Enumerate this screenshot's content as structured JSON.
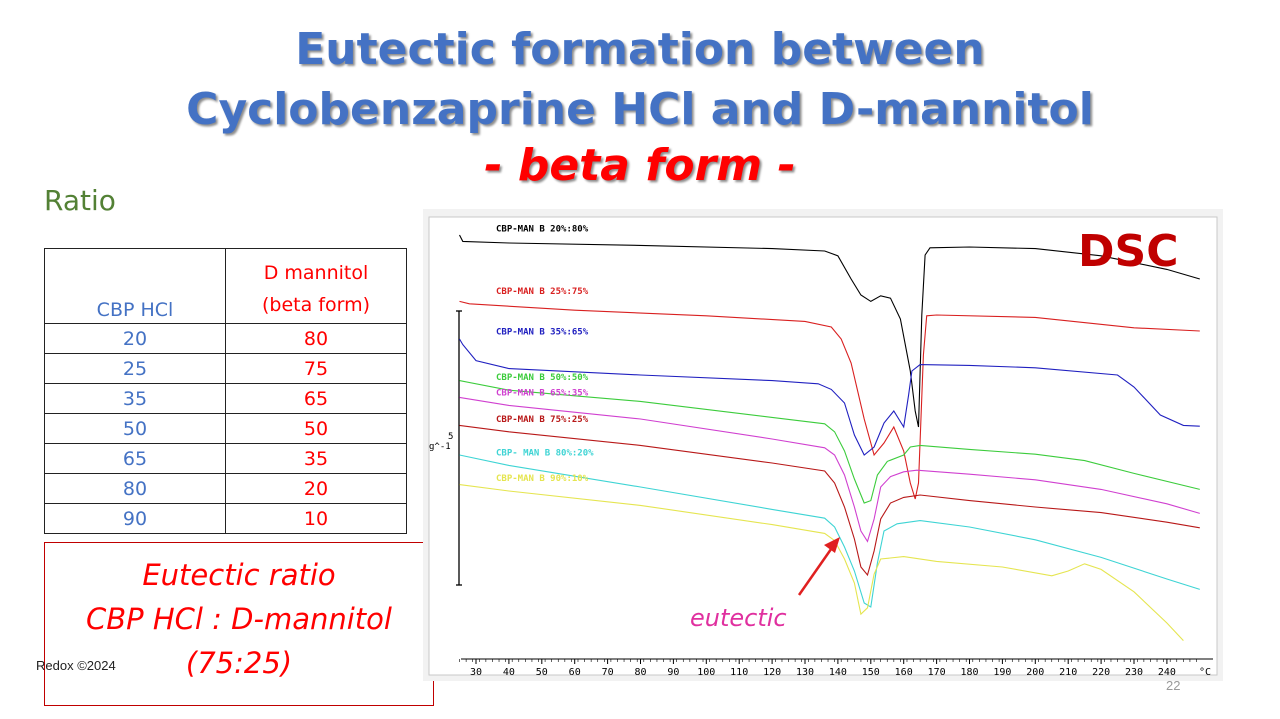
{
  "title": {
    "line1": "Eutectic formation between",
    "line2": "Cyclobenzaprine HCl and D-mannitol",
    "line3": "- beta form -"
  },
  "ratio_label": "Ratio",
  "ratio_table": {
    "header_col1": "CBP HCl",
    "header_col2_line1": "D mannitol",
    "header_col2_line2": "(beta form)",
    "rows": [
      [
        "20",
        "80"
      ],
      [
        "25",
        "75"
      ],
      [
        "35",
        "65"
      ],
      [
        "50",
        "50"
      ],
      [
        "65",
        "35"
      ],
      [
        "80",
        "20"
      ],
      [
        "90",
        "10"
      ]
    ]
  },
  "eutectic_box": {
    "line1": "Eutectic ratio",
    "line2": "CBP HCl : D-mannitol",
    "line3": "(75:25)"
  },
  "footer": {
    "copyright": "Redox ©2024",
    "page": "22"
  },
  "dsc_label": "DSC",
  "eutectic_annotation": "eutectic",
  "colors": {
    "title": "#4472c4",
    "subtitle": "#ff0000",
    "ratio_label": "#538135",
    "cbp_column": "#4472c4",
    "mannitol_column": "#ff0000",
    "dsc_label": "#c00000",
    "eutectic_annotation": "#e0309f"
  },
  "chart_data": {
    "type": "line",
    "title": "DSC",
    "xlabel": "°C",
    "ylabel": "",
    "y_scale_bar_label": "5\ng^-1",
    "xlim": [
      25,
      250
    ],
    "x_ticks": [
      30,
      40,
      50,
      60,
      70,
      80,
      90,
      100,
      110,
      120,
      130,
      140,
      150,
      160,
      170,
      180,
      190,
      200,
      210,
      220,
      230,
      240
    ],
    "x_unit_label": "°C",
    "grid": false,
    "legend": "inline labels left",
    "series": [
      {
        "name": "CBP-MAN B 20%:80%",
        "color": "#000000",
        "points": [
          [
            25,
            0
          ],
          [
            26,
            0.8
          ],
          [
            40,
            1.0
          ],
          [
            80,
            1.3
          ],
          [
            120,
            1.7
          ],
          [
            136,
            2.0
          ],
          [
            140,
            2.6
          ],
          [
            144,
            5.5
          ],
          [
            147,
            7.5
          ],
          [
            150,
            8.3
          ],
          [
            153,
            7.6
          ],
          [
            156,
            7.9
          ],
          [
            159,
            10.5
          ],
          [
            162,
            17
          ],
          [
            163.5,
            22
          ],
          [
            164.5,
            24
          ],
          [
            165.5,
            10
          ],
          [
            166.5,
            2.5
          ],
          [
            168,
            1.6
          ],
          [
            180,
            1.5
          ],
          [
            200,
            1.7
          ],
          [
            220,
            2.6
          ],
          [
            240,
            4.3
          ],
          [
            250,
            5.5
          ]
        ]
      },
      {
        "name": "CBP-MAN B 25%:75%",
        "color": "#d92020",
        "points": [
          [
            25,
            8.3
          ],
          [
            28,
            8.6
          ],
          [
            60,
            9.4
          ],
          [
            100,
            10.1
          ],
          [
            130,
            10.8
          ],
          [
            138,
            11.5
          ],
          [
            141,
            13
          ],
          [
            144,
            16
          ],
          [
            148,
            23
          ],
          [
            151,
            27.5
          ],
          [
            154,
            26
          ],
          [
            157,
            24
          ],
          [
            160,
            27
          ],
          [
            162,
            31
          ],
          [
            163.5,
            33
          ],
          [
            164.5,
            31
          ],
          [
            166,
            15
          ],
          [
            167,
            10.1
          ],
          [
            170,
            10.0
          ],
          [
            200,
            10.3
          ],
          [
            230,
            11.6
          ],
          [
            250,
            12.0
          ]
        ]
      },
      {
        "name": "CBP-MAN B 35%:65%",
        "color": "#2020c0",
        "points": [
          [
            25,
            13.0
          ],
          [
            26,
            13.7
          ],
          [
            30,
            15.7
          ],
          [
            40,
            16.7
          ],
          [
            80,
            17.5
          ],
          [
            120,
            18.2
          ],
          [
            134,
            18.6
          ],
          [
            138,
            19.3
          ],
          [
            142,
            21
          ],
          [
            145,
            25
          ],
          [
            148,
            27.5
          ],
          [
            151,
            26.5
          ],
          [
            154,
            23.5
          ],
          [
            157,
            22
          ],
          [
            160,
            24
          ],
          [
            161.5,
            20
          ],
          [
            162.5,
            17
          ],
          [
            165,
            16.2
          ],
          [
            180,
            16.3
          ],
          [
            200,
            16.6
          ],
          [
            225,
            17.5
          ],
          [
            230,
            19
          ],
          [
            238,
            22.5
          ],
          [
            245,
            23.8
          ],
          [
            250,
            23.9
          ]
        ]
      },
      {
        "name": "CBP-MAN B 50%:50%",
        "color": "#3ccc3c",
        "points": [
          [
            25,
            18.2
          ],
          [
            40,
            19.4
          ],
          [
            80,
            20.8
          ],
          [
            120,
            22.8
          ],
          [
            136,
            23.6
          ],
          [
            139,
            24.6
          ],
          [
            142,
            27
          ],
          [
            145,
            30.5
          ],
          [
            148,
            33.5
          ],
          [
            150,
            33.2
          ],
          [
            152,
            30
          ],
          [
            155,
            28.3
          ],
          [
            160,
            27.5
          ],
          [
            162,
            26.5
          ],
          [
            165,
            26.3
          ],
          [
            180,
            26.8
          ],
          [
            200,
            27.4
          ],
          [
            215,
            28.2
          ],
          [
            230,
            29.8
          ],
          [
            250,
            31.8
          ]
        ]
      },
      {
        "name": "CBP-MAN B 65%:35%",
        "color": "#d040d0",
        "points": [
          [
            25,
            20.3
          ],
          [
            40,
            21.3
          ],
          [
            80,
            23
          ],
          [
            120,
            25.5
          ],
          [
            136,
            26.6
          ],
          [
            139,
            27.5
          ],
          [
            142,
            30
          ],
          [
            145,
            34
          ],
          [
            147,
            37
          ],
          [
            149,
            38.3
          ],
          [
            151,
            35.5
          ],
          [
            153,
            31.5
          ],
          [
            156,
            30.2
          ],
          [
            160,
            29.6
          ],
          [
            164,
            29.4
          ],
          [
            180,
            29.9
          ],
          [
            200,
            30.6
          ],
          [
            220,
            31.8
          ],
          [
            240,
            33.6
          ],
          [
            250,
            34.8
          ]
        ]
      },
      {
        "name": "CBP-MAN B 75%:25%",
        "color": "#b81818",
        "points": [
          [
            25,
            23.8
          ],
          [
            40,
            24.6
          ],
          [
            80,
            26.3
          ],
          [
            120,
            28.5
          ],
          [
            136,
            29.5
          ],
          [
            139,
            31
          ],
          [
            142,
            34
          ],
          [
            145,
            38
          ],
          [
            147,
            41.5
          ],
          [
            149,
            42.5
          ],
          [
            151,
            39.5
          ],
          [
            153,
            35.5
          ],
          [
            156,
            33.5
          ],
          [
            160,
            32.8
          ],
          [
            165,
            32.5
          ],
          [
            180,
            33.2
          ],
          [
            200,
            34.0
          ],
          [
            220,
            34.7
          ],
          [
            240,
            35.9
          ],
          [
            250,
            36.6
          ]
        ]
      },
      {
        "name": "CBP- MAN B 80%:20%",
        "color": "#3ed4d4",
        "points": [
          [
            25,
            27.5
          ],
          [
            40,
            28.8
          ],
          [
            80,
            31.5
          ],
          [
            120,
            34.3
          ],
          [
            136,
            35.4
          ],
          [
            139,
            36.5
          ],
          [
            142,
            39
          ],
          [
            145,
            42
          ],
          [
            148,
            46
          ],
          [
            150,
            46.5
          ],
          [
            152,
            41
          ],
          [
            154,
            37
          ],
          [
            158,
            36.1
          ],
          [
            165,
            35.7
          ],
          [
            180,
            36.5
          ],
          [
            200,
            38.1
          ],
          [
            220,
            40.3
          ],
          [
            240,
            43.0
          ],
          [
            250,
            44.3
          ]
        ]
      },
      {
        "name": "CBP-MAN B 90%:10%",
        "color": "#e5e550",
        "points": [
          [
            25,
            31.2
          ],
          [
            40,
            32.0
          ],
          [
            80,
            33.8
          ],
          [
            120,
            36.2
          ],
          [
            136,
            37.3
          ],
          [
            139,
            38.2
          ],
          [
            142,
            40.5
          ],
          [
            145,
            43.5
          ],
          [
            147,
            47.4
          ],
          [
            149,
            46.6
          ],
          [
            151,
            42.4
          ],
          [
            153,
            40.5
          ],
          [
            160,
            40.2
          ],
          [
            170,
            40.8
          ],
          [
            190,
            41.5
          ],
          [
            205,
            42.6
          ],
          [
            210,
            42.0
          ],
          [
            215,
            41.1
          ],
          [
            220,
            41.8
          ],
          [
            230,
            44.6
          ],
          [
            240,
            48.5
          ],
          [
            245,
            50.7
          ]
        ]
      }
    ],
    "annotations": [
      {
        "text": "eutectic",
        "arrow_to_x": 146
      }
    ]
  }
}
